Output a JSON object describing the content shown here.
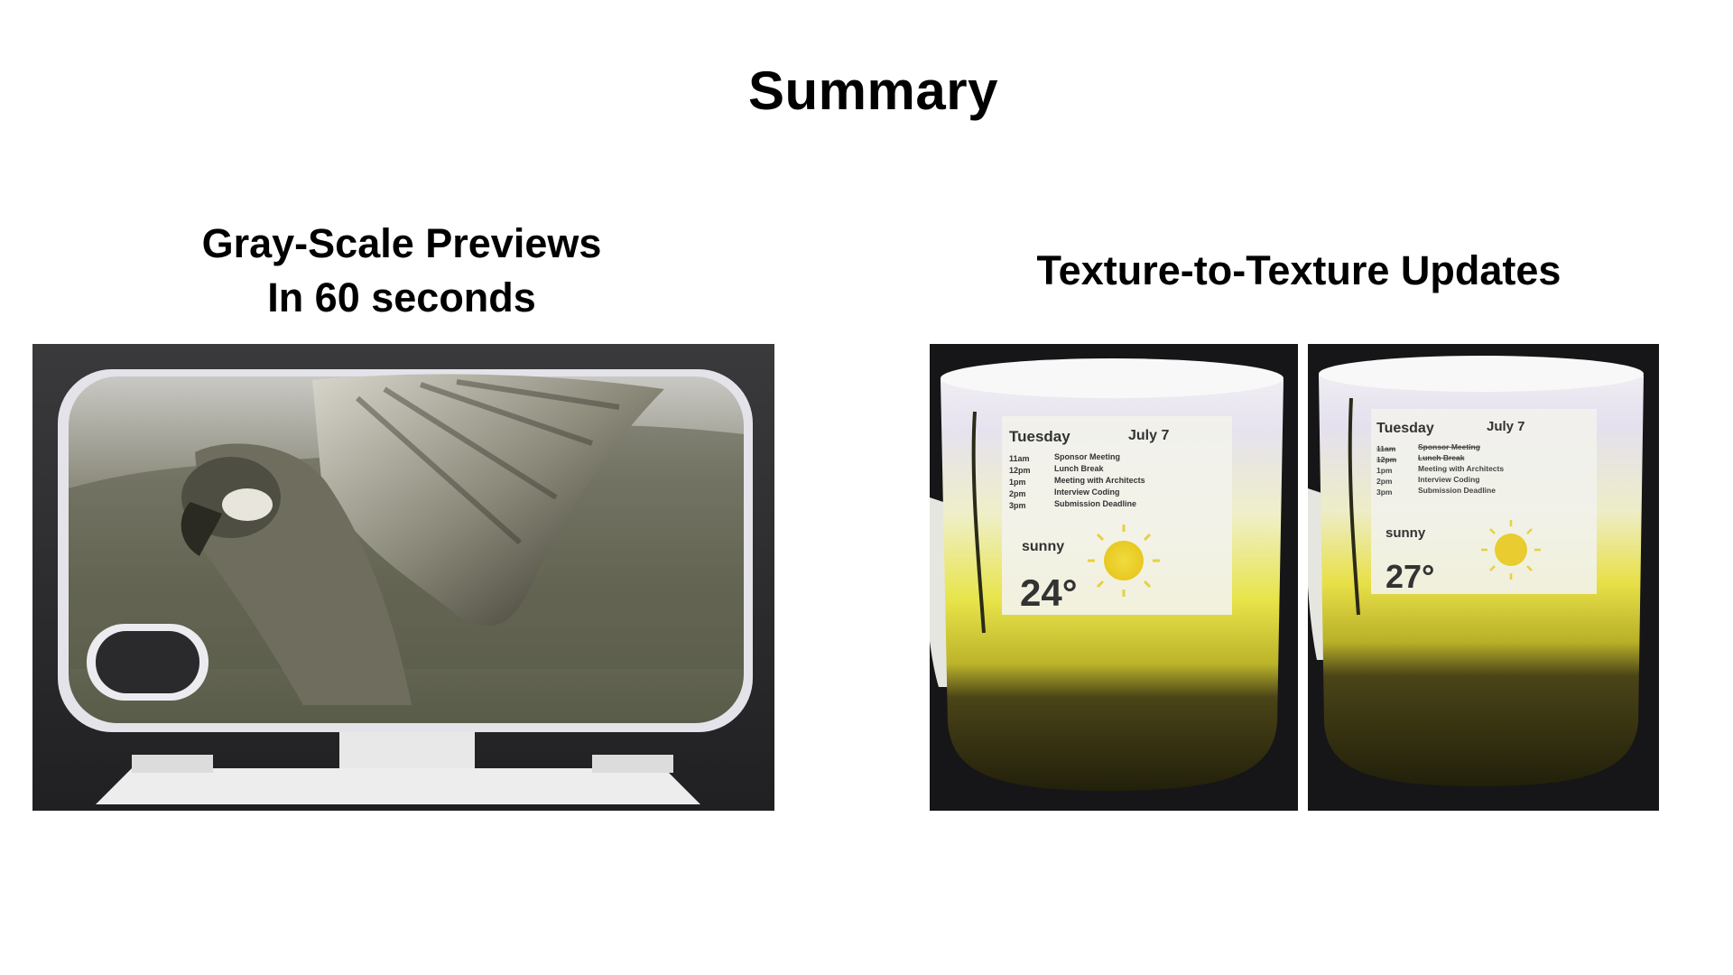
{
  "slide": {
    "title": "Summary"
  },
  "left_panel": {
    "heading_line1": "Gray-Scale Previews",
    "heading_line2": "In 60 seconds",
    "photo_icon": "parrot-phone-case-photo"
  },
  "right_panel": {
    "heading": "Texture-to-Texture Updates",
    "mug_before": {
      "day": "Tuesday",
      "date": "July 7",
      "schedule": [
        {
          "time": "11am",
          "event": "Sponsor Meeting"
        },
        {
          "time": "12pm",
          "event": "Lunch Break"
        },
        {
          "time": "1pm",
          "event": "Meeting with Architects"
        },
        {
          "time": "2pm",
          "event": "Interview Coding"
        },
        {
          "time": "3pm",
          "event": "Submission Deadline"
        }
      ],
      "weather": "sunny",
      "temperature": "24°"
    },
    "mug_after": {
      "day": "Tuesday",
      "date": "July 7",
      "schedule": [
        {
          "time": "11am",
          "event": "Sponsor Meeting"
        },
        {
          "time": "12pm",
          "event": "Lunch Break"
        },
        {
          "time": "1pm",
          "event": "Meeting with Architects"
        },
        {
          "time": "2pm",
          "event": "Interview Coding"
        },
        {
          "time": "3pm",
          "event": "Submission Deadline"
        }
      ],
      "weather": "sunny",
      "temperature": "27°"
    }
  }
}
